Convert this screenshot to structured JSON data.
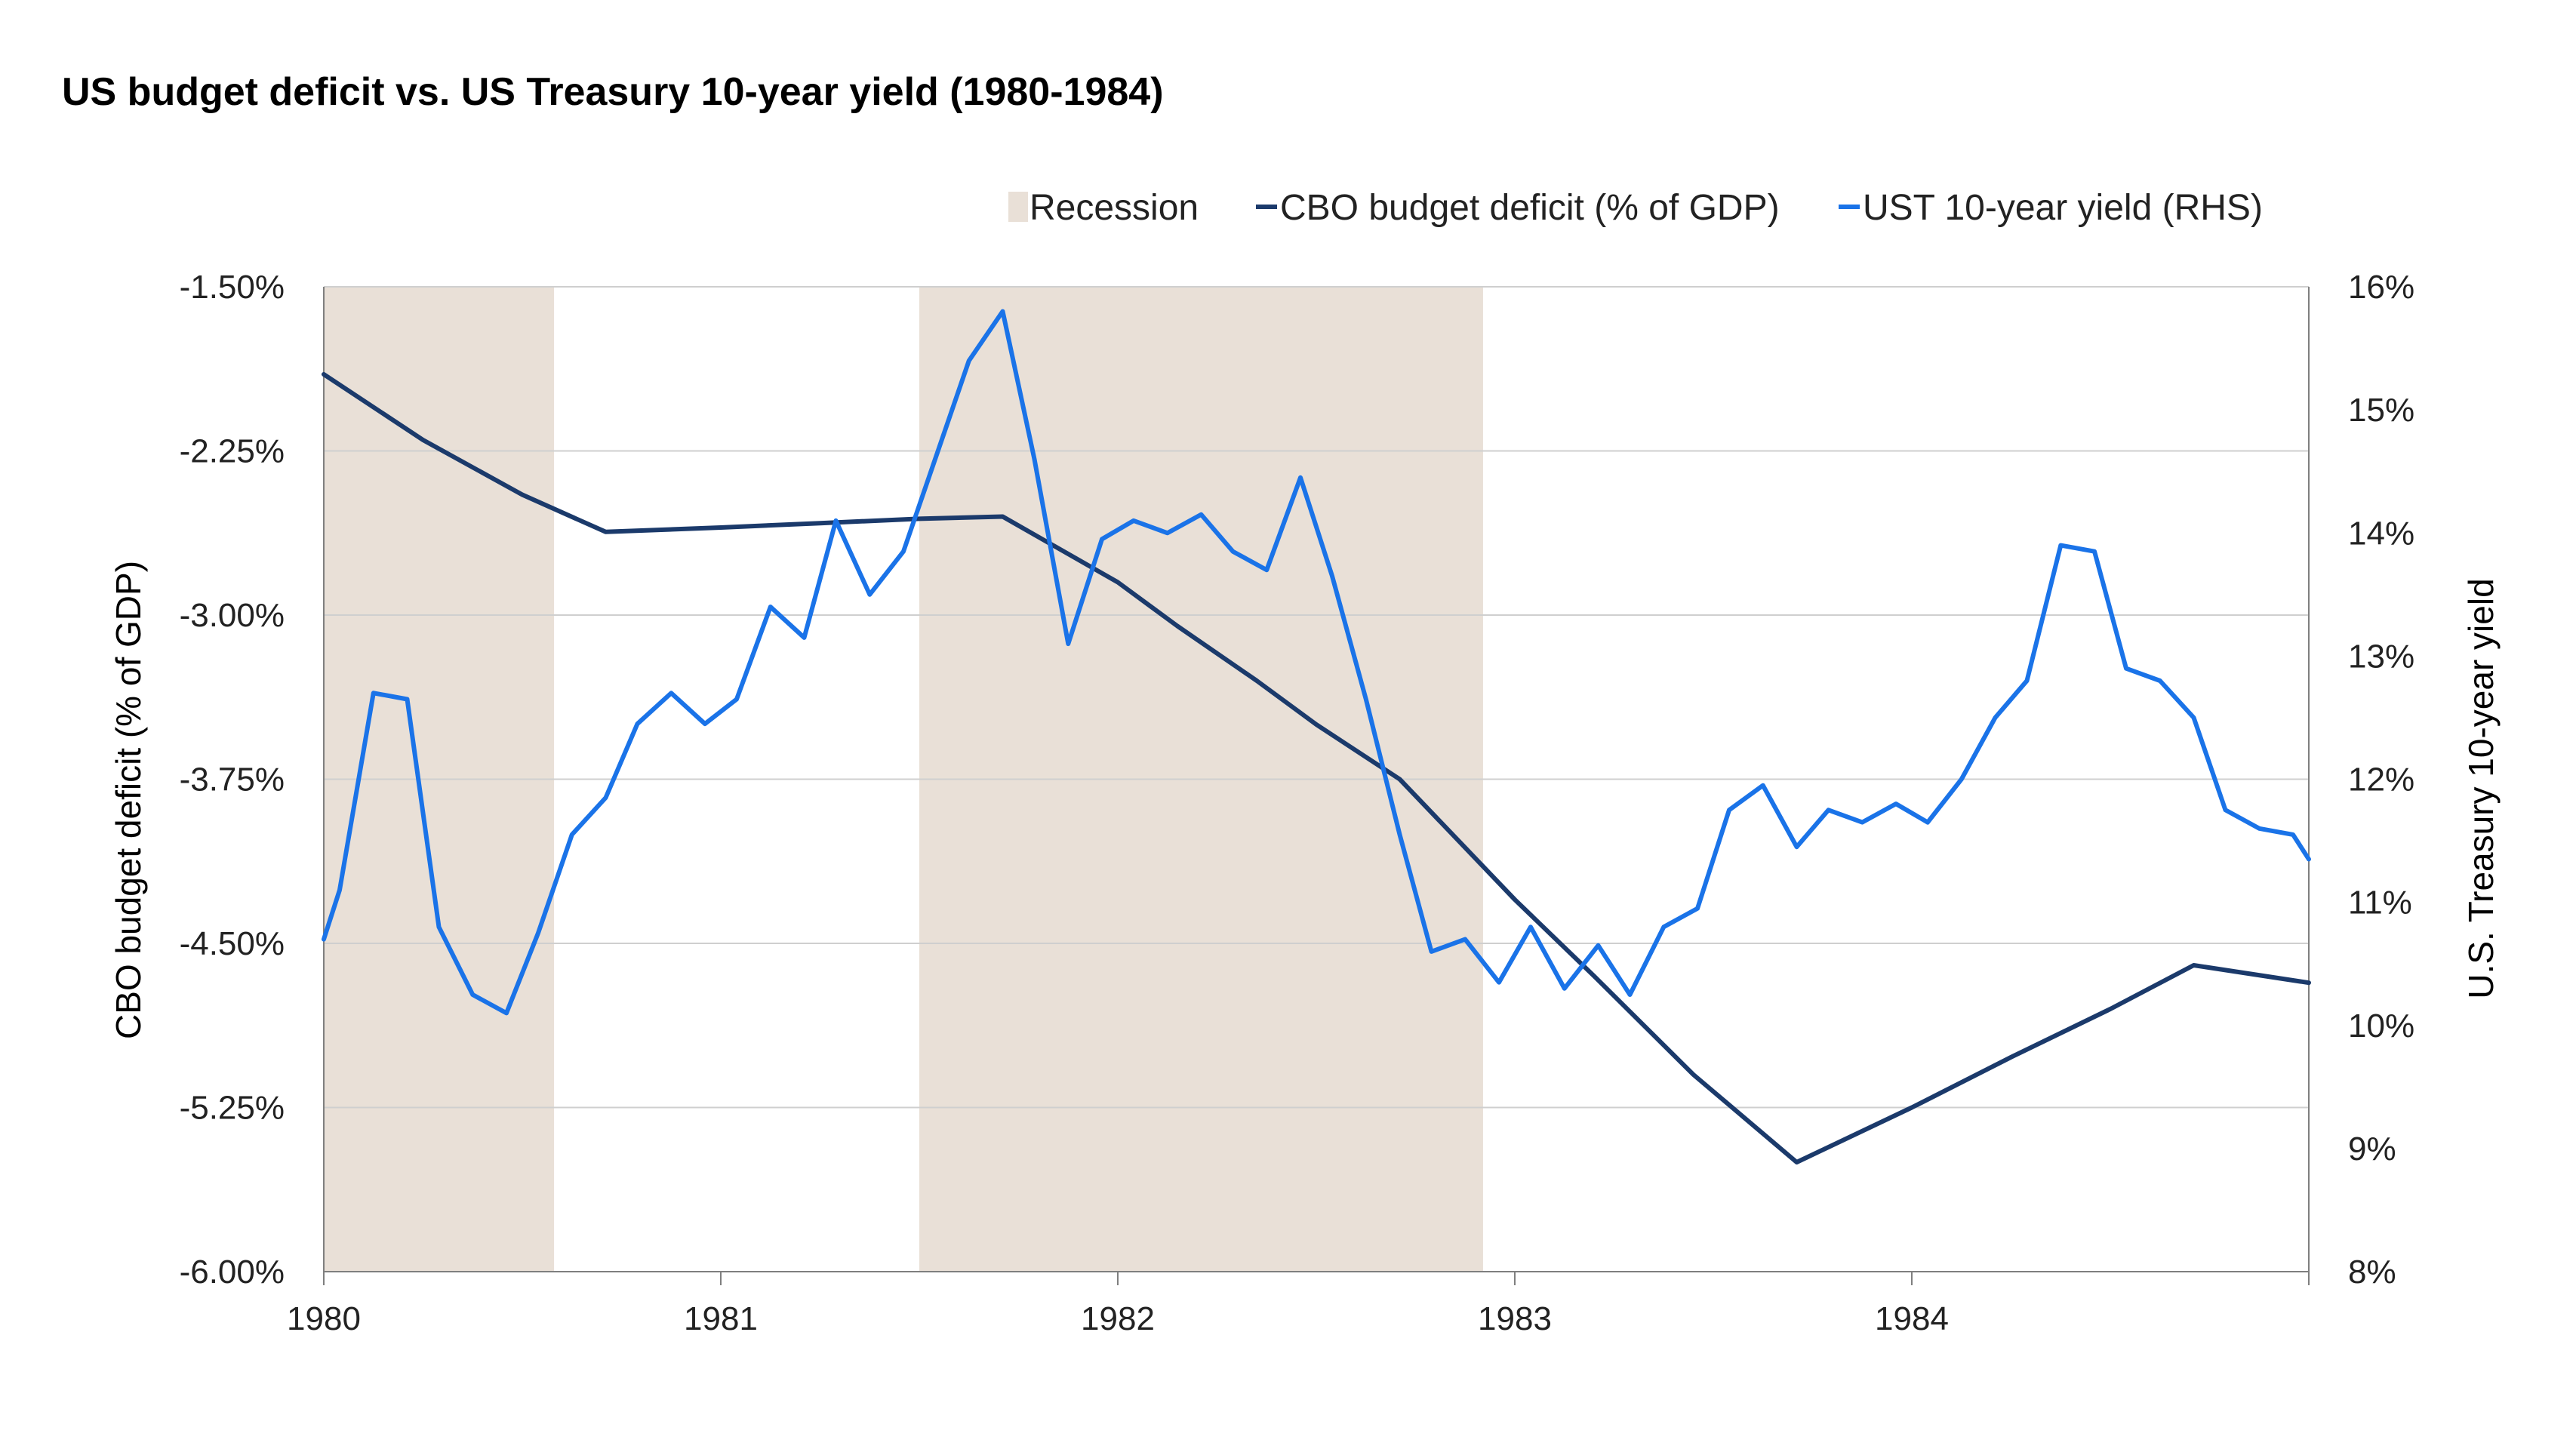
{
  "chart_data": {
    "type": "line",
    "title": "US budget deficit vs. US Treasury 10-year yield (1980-1984)",
    "ylabel": "CBO budget deficit (% of GDP)",
    "ylabel_right": "U.S. Treasury 10-year yield",
    "x_ticks": [
      "1980",
      "1981",
      "1982",
      "1983",
      "1984"
    ],
    "x_range": [
      1980.0,
      1985.0
    ],
    "y_left_range": [
      -6.0,
      -1.5
    ],
    "y_left_ticks": [
      -6.0,
      -5.25,
      -4.5,
      -3.75,
      -3.0,
      -2.25,
      -1.5
    ],
    "y_left_tick_labels": [
      "-6.00%",
      "-5.25%",
      "-4.50%",
      "-3.75%",
      "-3.00%",
      "-2.25%",
      "-1.50%"
    ],
    "y_right_range": [
      8,
      16
    ],
    "y_right_ticks": [
      8,
      9,
      10,
      11,
      12,
      13,
      14,
      15,
      16
    ],
    "y_right_tick_labels": [
      "8%",
      "9%",
      "10%",
      "11%",
      "12%",
      "13%",
      "14%",
      "15%",
      "16%"
    ],
    "grid": "horizontal",
    "legend_position": "top-right",
    "colors": {
      "recession": "#E9E0D7",
      "deficit": "#1B3A6B",
      "yield": "#1A73E8",
      "grid": "#CFCFCF",
      "axis": "#7F7F7F"
    },
    "recessions": [
      {
        "start": 1980.0,
        "end": 1980.58
      },
      {
        "start": 1981.5,
        "end": 1982.92
      }
    ],
    "series": [
      {
        "name": "CBO budget deficit (% of GDP)",
        "axis": "left",
        "x": [
          1980.0,
          1980.25,
          1980.5,
          1980.71,
          1981.0,
          1981.25,
          1981.5,
          1981.71,
          1982.0,
          1982.15,
          1982.35,
          1982.5,
          1982.71,
          1983.0,
          1983.2,
          1983.45,
          1983.71,
          1984.0,
          1984.25,
          1984.5,
          1984.71,
          1985.0
        ],
        "values": [
          -1.9,
          -2.2,
          -2.45,
          -2.62,
          -2.6,
          -2.58,
          -2.56,
          -2.55,
          -2.85,
          -3.05,
          -3.3,
          -3.5,
          -3.75,
          -4.3,
          -4.65,
          -5.1,
          -5.5,
          -5.25,
          -5.02,
          -4.8,
          -4.6,
          -4.68
        ]
      },
      {
        "name": "UST 10-year yield (RHS)",
        "axis": "right",
        "x": [
          1980.0,
          1980.04,
          1980.125,
          1980.21,
          1980.29,
          1980.375,
          1980.46,
          1980.54,
          1980.625,
          1980.71,
          1980.79,
          1980.875,
          1980.96,
          1981.04,
          1981.125,
          1981.21,
          1981.29,
          1981.375,
          1981.46,
          1981.54,
          1981.625,
          1981.71,
          1981.79,
          1981.875,
          1981.96,
          1982.04,
          1982.125,
          1982.21,
          1982.29,
          1982.375,
          1982.46,
          1982.54,
          1982.625,
          1982.71,
          1982.79,
          1982.875,
          1982.96,
          1983.04,
          1983.125,
          1983.21,
          1983.29,
          1983.375,
          1983.46,
          1983.54,
          1983.625,
          1983.71,
          1983.79,
          1983.875,
          1983.96,
          1984.04,
          1984.125,
          1984.21,
          1984.29,
          1984.375,
          1984.46,
          1984.54,
          1984.625,
          1984.71,
          1984.79,
          1984.875,
          1984.96,
          1985.0
        ],
        "values": [
          10.7,
          11.1,
          12.7,
          12.65,
          10.8,
          10.25,
          10.1,
          10.75,
          11.55,
          11.85,
          12.45,
          12.7,
          12.45,
          12.65,
          13.4,
          13.15,
          14.1,
          13.5,
          13.85,
          14.6,
          15.4,
          15.8,
          14.6,
          13.1,
          13.95,
          14.1,
          14.0,
          14.15,
          13.85,
          13.7,
          14.45,
          13.65,
          12.65,
          11.55,
          10.6,
          10.7,
          10.35,
          10.8,
          10.3,
          10.65,
          10.25,
          10.8,
          10.95,
          11.75,
          11.95,
          11.45,
          11.75,
          11.65,
          11.8,
          11.65,
          12.0,
          12.5,
          12.8,
          13.9,
          13.85,
          12.9,
          12.8,
          12.5,
          11.75,
          11.6,
          11.55,
          11.35
        ]
      }
    ],
    "legend": [
      "Recession",
      "CBO budget deficit (% of GDP)",
      "UST 10-year yield (RHS)"
    ]
  }
}
